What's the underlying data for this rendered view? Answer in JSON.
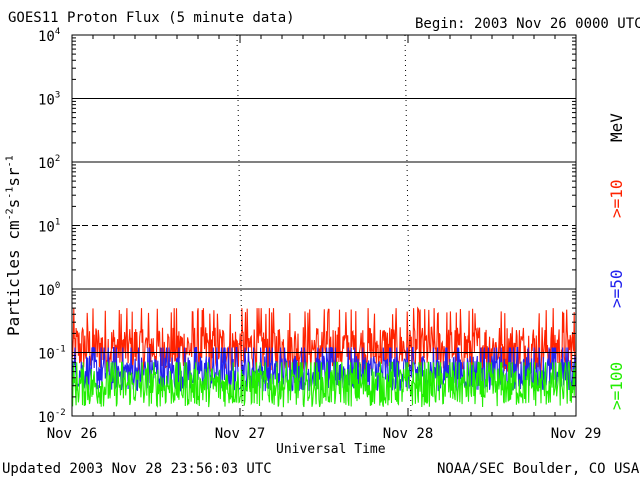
{
  "header": {
    "title": "GOES11 Proton Flux (5 minute data)",
    "begin": "Begin: 2003 Nov 26 0000 UTC"
  },
  "footer": {
    "updated": "Updated 2003 Nov 28 23:56:03 UTC",
    "source": "NOAA/SEC Boulder, CO USA"
  },
  "legend": {
    "units": "MeV",
    "items": [
      {
        "label": ">=10",
        "color": "#ff2200"
      },
      {
        "label": ">=50",
        "color": "#2222ee"
      },
      {
        "label": ">=100",
        "color": "#22ee00"
      }
    ]
  },
  "chart_data": {
    "type": "line",
    "title": "GOES11 Proton Flux (5 minute data)",
    "xlabel": "Universal Time",
    "ylabel": "Particles cm-2 s-1 sr-1",
    "yscale": "log",
    "ylim": [
      0.01,
      10000
    ],
    "x_ticks": [
      "Nov 26",
      "Nov 27",
      "Nov 28",
      "Nov 29"
    ],
    "y_ticks": [
      {
        "base": "10",
        "exp": "-2"
      },
      {
        "base": "10",
        "exp": "-1"
      },
      {
        "base": "10",
        "exp": "0"
      },
      {
        "base": "10",
        "exp": "1"
      },
      {
        "base": "10",
        "exp": "2"
      },
      {
        "base": "10",
        "exp": "3"
      },
      {
        "base": "10",
        "exp": "4"
      }
    ],
    "thresholds": [
      {
        "value": 0.1,
        "style": "solid"
      },
      {
        "value": 1,
        "style": "solid"
      },
      {
        "value": 10,
        "style": "dashed"
      },
      {
        "value": 100,
        "style": "solid"
      },
      {
        "value": 1000,
        "style": "solid"
      }
    ],
    "series": [
      {
        "name": ">=10 MeV",
        "color": "#ff2200",
        "typical": 0.12,
        "range": [
          0.05,
          0.5
        ]
      },
      {
        "name": ">=50 MeV",
        "color": "#2222ee",
        "typical": 0.05,
        "range": [
          0.02,
          0.12
        ]
      },
      {
        "name": ">=100 MeV",
        "color": "#22ee00",
        "typical": 0.03,
        "range": [
          0.01,
          0.07
        ]
      }
    ]
  }
}
